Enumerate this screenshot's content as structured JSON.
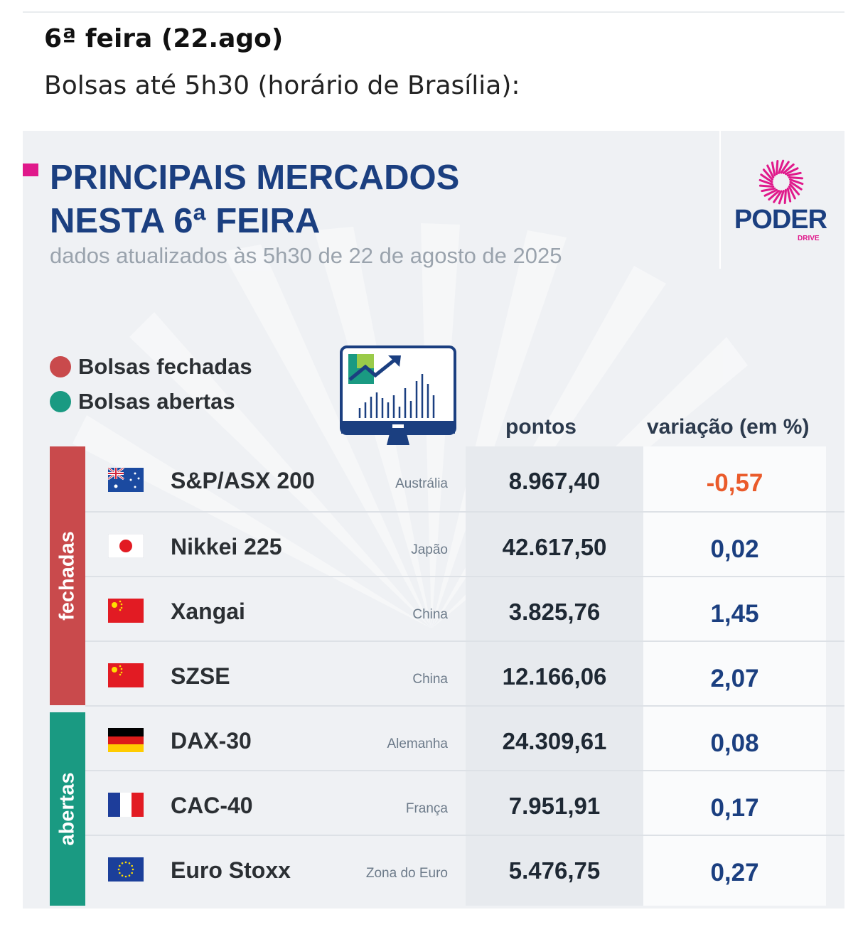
{
  "article": {
    "date_heading": "6ª feira (22.ago)",
    "subheading": "Bolsas até 5h30 (horário de Brasília):"
  },
  "card": {
    "title_line1": "PRINCIPAIS MERCADOS",
    "title_line2": "NESTA 6ª FEIRA",
    "subtitle": "dados atualizados às 5h30 de 22 de agosto de 2025",
    "logo_text": "PODER",
    "logo_subtext": "DRIVE",
    "legend": [
      {
        "label": "Bolsas fechadas",
        "color": "#c94a4c"
      },
      {
        "label": "Bolsas abertas",
        "color": "#1a9a82"
      }
    ],
    "column_headers": {
      "points": "pontos",
      "variation": "variação (em %)"
    },
    "groups": [
      {
        "label": "fechadas",
        "color": "#c94a4c"
      },
      {
        "label": "abertas",
        "color": "#1a9a82"
      }
    ],
    "colors": {
      "title": "#1b3f80",
      "negative": "#ea5b2b",
      "positive": "#1b3f80",
      "accent": "#e0198b"
    },
    "rows": [
      {
        "flag": "australia-flag-icon",
        "index": "S&P/ASX 200",
        "country": "Austrália",
        "points": "8.967,40",
        "variation": "-0,57"
      },
      {
        "flag": "japan-flag-icon",
        "index": "Nikkei 225",
        "country": "Japão",
        "points": "42.617,50",
        "variation": "0,02"
      },
      {
        "flag": "china-flag-icon",
        "index": "Xangai",
        "country": "China",
        "points": "3.825,76",
        "variation": "1,45"
      },
      {
        "flag": "china-flag-icon",
        "index": "SZSE",
        "country": "China",
        "points": "12.166,06",
        "variation": "2,07"
      },
      {
        "flag": "germany-flag-icon",
        "index": "DAX-30",
        "country": "Alemanha",
        "points": "24.309,61",
        "variation": "0,08"
      },
      {
        "flag": "france-flag-icon",
        "index": "CAC-40",
        "country": "França",
        "points": "7.951,91",
        "variation": "0,17"
      },
      {
        "flag": "eu-flag-icon",
        "index": "Euro Stoxx",
        "country": "Zona do Euro",
        "points": "5.476,75",
        "variation": "0,27"
      }
    ]
  }
}
